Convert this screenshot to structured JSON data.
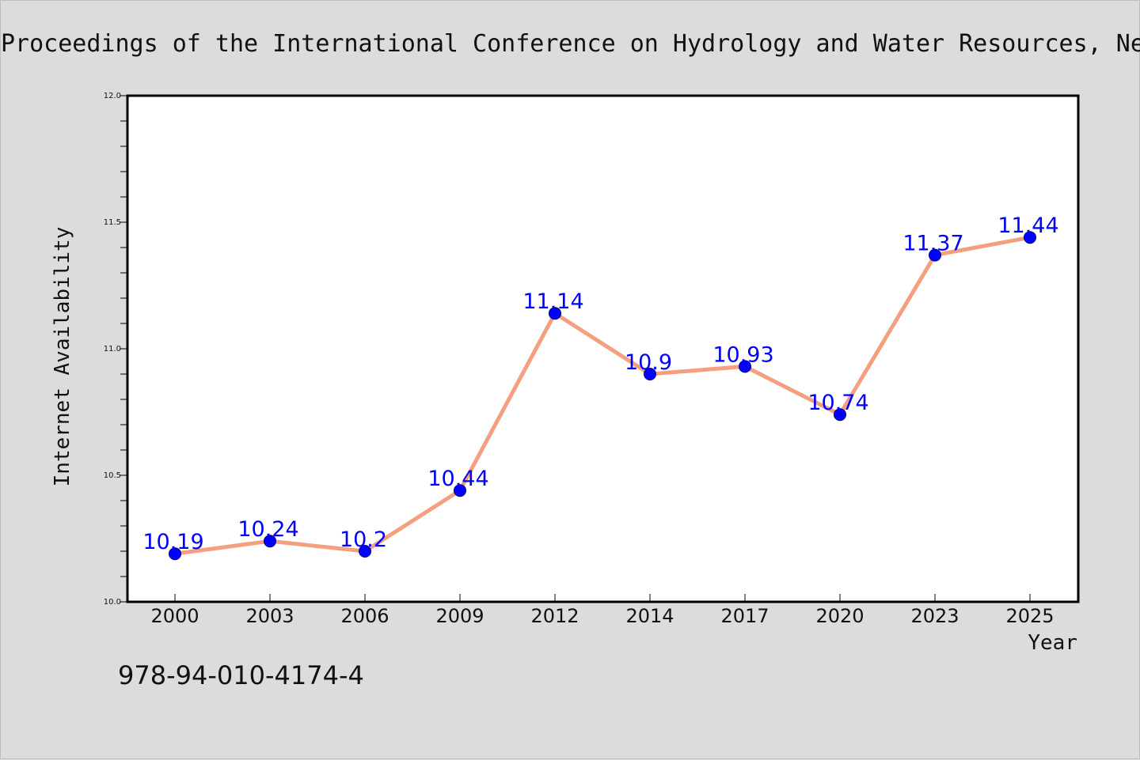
{
  "page": {
    "title": "Proceedings of the International Conference on Hydrology and Water Resources, Ne",
    "footer_text": "978-94-010-4174-4"
  },
  "colors": {
    "background": "#dcdcdc",
    "plot_background": "#ffffff",
    "line": "#f4a080",
    "marker": "#0000ff",
    "marker_edge": "#000080",
    "data_label": "#0000ff"
  },
  "chart_data": {
    "type": "line",
    "title": "Proceedings of the International Conference on Hydrology and Water Resources, Ne",
    "xlabel": "Year",
    "ylabel": "Internet Availability",
    "categories": [
      "2000",
      "2003",
      "2006",
      "2009",
      "2012",
      "2014",
      "2017",
      "2020",
      "2023",
      "2025"
    ],
    "series": [
      {
        "values": [
          10.19,
          10.24,
          10.2,
          10.44,
          11.14,
          10.9,
          10.93,
          10.74,
          11.37,
          11.44
        ],
        "data_labels": [
          "10.19",
          "10.24",
          "10.2",
          "10.44",
          "11.14",
          "10.9",
          "10.93",
          "10.74",
          "11.37",
          "11.44"
        ]
      }
    ],
    "ylim": [
      10.0,
      12.0
    ],
    "yticks": [
      "10.0",
      "10.5",
      "11.0",
      "11.5",
      "12.0"
    ],
    "ytick_values": [
      10.0,
      10.5,
      11.0,
      11.5,
      12.0
    ],
    "minor_ytick_step": 0.1,
    "grid": false,
    "legend": "none"
  }
}
